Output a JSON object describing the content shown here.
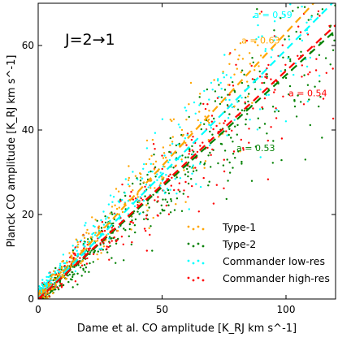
{
  "chart_data": {
    "type": "scatter",
    "title": "",
    "panel_label": "J=2→1",
    "xlabel": "Dame et al. CO amplitude [K_RJ km s^-1]",
    "ylabel": "Planck CO amplitude [K_RJ km s^-1]",
    "xlim": [
      0,
      120
    ],
    "ylim": [
      0,
      70
    ],
    "xticks": [
      0,
      50,
      100
    ],
    "yticks": [
      0,
      20,
      40,
      60
    ],
    "grid": false,
    "legend_position": "bottom-right",
    "series": [
      {
        "name": "Type-1",
        "color": "#ffa500",
        "slope": 0.63,
        "annotation": "a = 0.63",
        "annotation_at": [
          82,
          60.5
        ]
      },
      {
        "name": "Type-2",
        "color": "#008000",
        "slope": 0.53,
        "annotation": "a = 0.53",
        "annotation_at": [
          80,
          35
        ]
      },
      {
        "name": "Commander low-res",
        "color": "#00ffff",
        "slope": 0.59,
        "annotation": "a = 0.59",
        "annotation_at": [
          87,
          66.5
        ]
      },
      {
        "name": "Commander high-res",
        "color": "#ff0000",
        "slope": 0.54,
        "annotation": "a = 0.54",
        "annotation_at": [
          101,
          48
        ]
      }
    ]
  }
}
